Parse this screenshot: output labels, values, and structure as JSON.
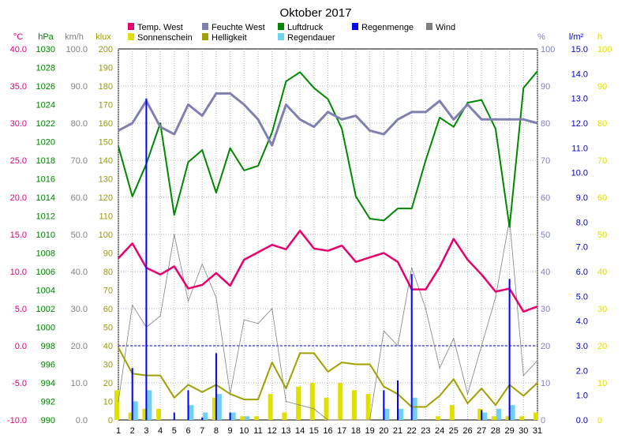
{
  "chart_data": {
    "type": "line",
    "title": "Oktober 2017",
    "x": [
      1,
      2,
      3,
      4,
      5,
      6,
      7,
      8,
      9,
      10,
      11,
      12,
      13,
      14,
      15,
      16,
      17,
      18,
      19,
      20,
      21,
      22,
      23,
      24,
      25,
      26,
      27,
      28,
      29,
      30,
      31
    ],
    "axes": {
      "temp": {
        "unit": "°C",
        "color": "#e0007f",
        "min": -10,
        "max": 40,
        "ticks": [
          "40.0",
          "35.0",
          "30.0",
          "25.0",
          "20.0",
          "15.0",
          "10.0",
          "5.0",
          "0.0",
          "-5.0",
          "-10.0"
        ]
      },
      "pressure": {
        "unit": "hPa",
        "color": "#008000",
        "min": 990,
        "max": 1030,
        "ticks": [
          "1030",
          "1028",
          "1026",
          "1024",
          "1022",
          "1020",
          "1018",
          "1016",
          "1014",
          "1012",
          "1010",
          "1008",
          "1006",
          "1004",
          "1002",
          "1000",
          "998",
          "996",
          "994",
          "992",
          "990"
        ]
      },
      "wind": {
        "unit": "km/h",
        "color": "#808080",
        "min": 0,
        "max": 100,
        "ticks": [
          "100.0",
          "90.0",
          "80.0",
          "70.0",
          "60.0",
          "50.0",
          "40.0",
          "30.0",
          "20.0",
          "10.0",
          "0.0"
        ]
      },
      "klux": {
        "unit": "klux",
        "color": "#999900",
        "min": 0,
        "max": 200,
        "ticks": [
          "200",
          "190",
          "180",
          "170",
          "160",
          "150",
          "140",
          "130",
          "120",
          "110",
          "100",
          "90",
          "80",
          "70",
          "60",
          "50",
          "40",
          "30",
          "20",
          "10",
          "0"
        ]
      },
      "humidity": {
        "unit": "%",
        "color": "#8080c0",
        "min": 0,
        "max": 100,
        "ticks": [
          "100",
          "90",
          "80",
          "70",
          "60",
          "50",
          "40",
          "30",
          "20",
          "10",
          "0"
        ]
      },
      "rain": {
        "unit": "l/m²",
        "color": "#0000c0",
        "min": 0,
        "max": 15,
        "ticks": [
          "15.0",
          "14.0",
          "13.0",
          "12.0",
          "11.0",
          "10.0",
          "9.0",
          "8.0",
          "7.0",
          "6.0",
          "5.0",
          "4.0",
          "3.0",
          "2.0",
          "1.0",
          "0.0"
        ]
      },
      "hours": {
        "unit": "h",
        "color": "#e0e000",
        "min": 0,
        "max": 100,
        "ticks": [
          "100",
          "90",
          "80",
          "70",
          "60",
          "50",
          "40",
          "30",
          "20",
          "10",
          "0"
        ]
      }
    },
    "legend": [
      {
        "label": "Temp. West",
        "color": "#e8006e"
      },
      {
        "label": "Feuchte West",
        "color": "#8080b0"
      },
      {
        "label": "Luftdruck",
        "color": "#008800"
      },
      {
        "label": "Regenmenge",
        "color": "#0000ff"
      },
      {
        "label": "Wind",
        "color": "#808080"
      },
      {
        "label": "Sonnenschein",
        "color": "#e0e000"
      },
      {
        "label": "Helligkeit",
        "color": "#a0a000"
      },
      {
        "label": "Regendauer",
        "color": "#70d0f0"
      }
    ],
    "series": [
      {
        "name": "Temp. West",
        "axis": "temp",
        "values": [
          11.8,
          13.8,
          10.5,
          9.6,
          10.7,
          7.7,
          8.2,
          9.8,
          8.1,
          11.6,
          12.6,
          13.6,
          13.0,
          15.5,
          13.1,
          12.8,
          13.5,
          11.3,
          11.9,
          12.5,
          11.3,
          7.6,
          7.6,
          10.6,
          14.4,
          11.6,
          9.6,
          7.3,
          7.7,
          4.6,
          5.3
        ]
      },
      {
        "name": "Feuchte West",
        "axis": "humidity",
        "values": [
          78,
          80,
          86,
          79,
          77,
          85,
          82,
          88,
          88,
          85,
          81,
          74,
          85,
          81,
          79,
          83,
          81,
          82,
          78,
          77,
          81,
          83,
          83,
          86,
          81,
          85,
          81,
          81,
          81,
          81,
          80
        ]
      },
      {
        "name": "Luftdruck",
        "axis": "pressure",
        "values": [
          1019.5,
          1014.1,
          1017.6,
          1022.0,
          1012.1,
          1017.8,
          1019.1,
          1014.5,
          1019.3,
          1016.9,
          1017.4,
          1021.0,
          1026.5,
          1027.5,
          1025.8,
          1024.6,
          1021.4,
          1014.1,
          1011.7,
          1011.5,
          1012.8,
          1012.8,
          1018.0,
          1022.6,
          1021.6,
          1024.2,
          1024.5,
          1021.4,
          1010.8,
          1025.8,
          1027.6
        ]
      },
      {
        "name": "Wind",
        "axis": "wind",
        "values": [
          5,
          31,
          25,
          28,
          50,
          32,
          42,
          33,
          7,
          27,
          26,
          30,
          5,
          4,
          3,
          0,
          0,
          0,
          0,
          24,
          20,
          41,
          30,
          14,
          22,
          7,
          20,
          33,
          54,
          12,
          16
        ]
      },
      {
        "name": "Helligkeit",
        "axis": "klux",
        "values": [
          39,
          25,
          24,
          24,
          12,
          19,
          15,
          19,
          14,
          11,
          11,
          31,
          17,
          36,
          36,
          26,
          31,
          30,
          30,
          18,
          14,
          7,
          7,
          13,
          22,
          9,
          17,
          8,
          19,
          13,
          20
        ]
      },
      {
        "name": "Sonnenschein",
        "axis": "hours",
        "values": [
          8,
          2,
          3,
          3,
          0,
          0,
          0,
          6,
          0,
          1,
          1,
          7,
          2,
          9,
          10,
          6,
          10,
          8,
          7,
          0,
          0,
          0,
          0,
          1,
          4,
          0,
          3,
          1,
          1,
          1,
          2
        ]
      },
      {
        "name": "Regendauer",
        "axis": "hours",
        "values": [
          0,
          5,
          8,
          0,
          0,
          4,
          2,
          7,
          2,
          1,
          0,
          0,
          0,
          0,
          0,
          0,
          0,
          0,
          0,
          3,
          3,
          6,
          0,
          0,
          0,
          0,
          2,
          3,
          4,
          0,
          0
        ]
      },
      {
        "name": "Regenmenge",
        "axis": "rain",
        "values": [
          0,
          2.1,
          13.0,
          0,
          0.3,
          1.2,
          0.1,
          2.7,
          0.3,
          0,
          0,
          0,
          0,
          0,
          0,
          0,
          0,
          0,
          0,
          1.2,
          1.6,
          5.9,
          0,
          0,
          0,
          0,
          0.4,
          0,
          5.7,
          0,
          0
        ]
      }
    ]
  }
}
